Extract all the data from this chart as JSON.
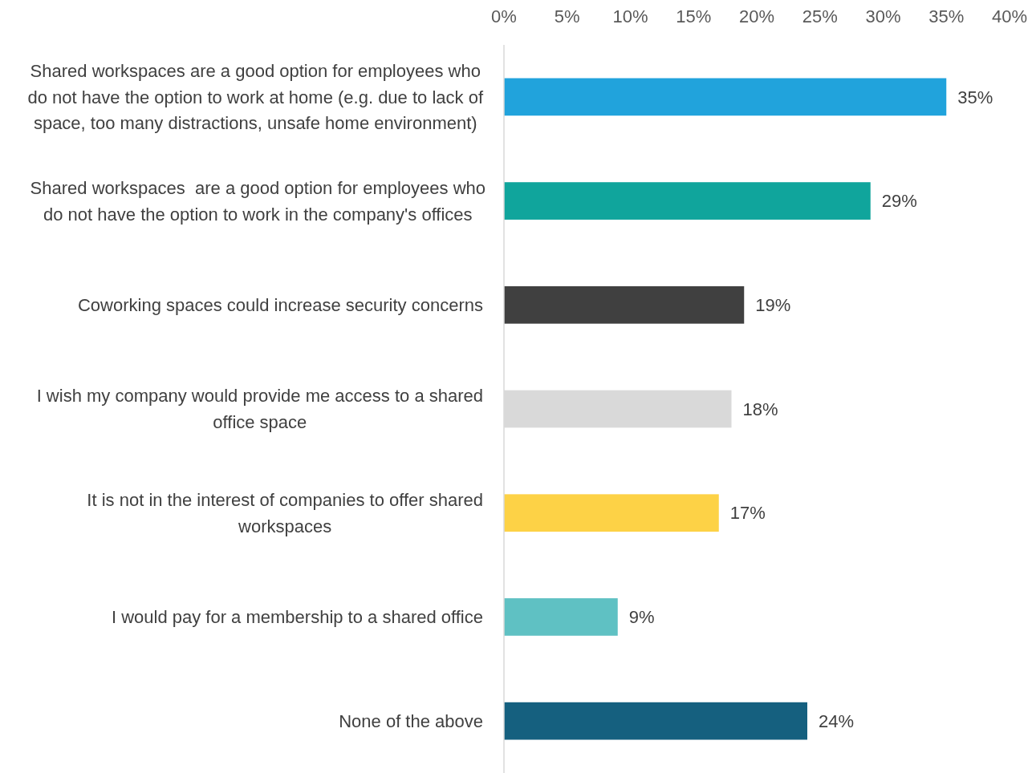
{
  "chart_data": {
    "type": "bar",
    "orientation": "horizontal",
    "categories": [
      "Shared workspaces are a good option for employees who do not have the option to work at home (e.g. due to lack of space, too many distractions, unsafe home environment)",
      "Shared workspaces  are a good option for employees who do not have the option to work in the company's offices",
      "Coworking spaces could increase security concerns",
      "I wish my company would provide me access to a shared office space",
      "It is not in the interest of companies to offer shared workspaces",
      "I would pay for a membership to a shared office",
      "None of the above"
    ],
    "values": [
      35,
      29,
      19,
      18,
      17,
      9,
      24
    ],
    "colors": [
      "#21a3dc",
      "#10a59c",
      "#404040",
      "#d9d9d9",
      "#fdd246",
      "#5fc1c3",
      "#15607f"
    ],
    "value_labels": [
      "35%",
      "29%",
      "19%",
      "18%",
      "17%",
      "9%",
      "24%"
    ],
    "xlim": [
      0,
      40
    ],
    "xticks": [
      {
        "value": 0,
        "label": "0%"
      },
      {
        "value": 5,
        "label": "5%"
      },
      {
        "value": 10,
        "label": "10%"
      },
      {
        "value": 15,
        "label": "15%"
      },
      {
        "value": 20,
        "label": "20%"
      },
      {
        "value": 25,
        "label": "25%"
      },
      {
        "value": 30,
        "label": "30%"
      },
      {
        "value": 35,
        "label": "35%"
      },
      {
        "value": 40,
        "label": "40%"
      }
    ],
    "grid": false
  }
}
